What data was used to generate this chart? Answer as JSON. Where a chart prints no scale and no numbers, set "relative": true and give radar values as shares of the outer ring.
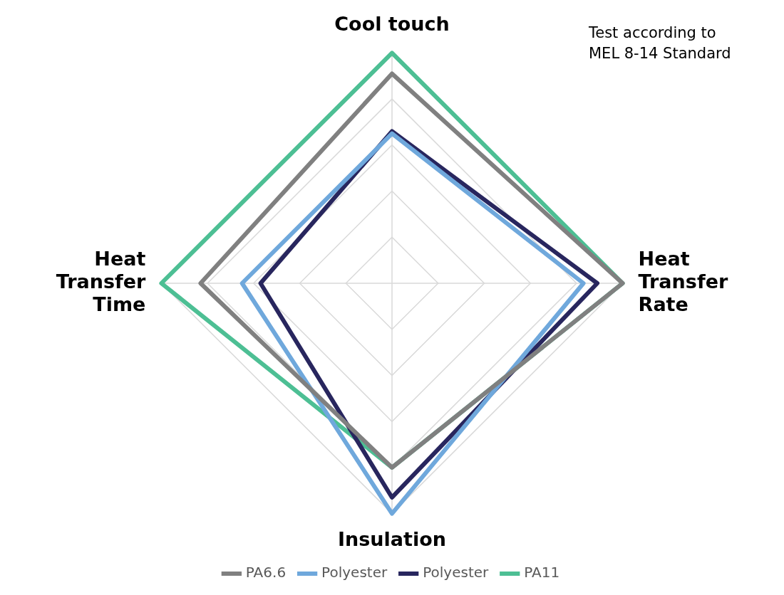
{
  "chart_data": {
    "type": "radar",
    "relative": true,
    "categories": [
      "Cool touch",
      "Heat Transfer Rate",
      "Insulation",
      "Heat Transfer Time"
    ],
    "series": [
      {
        "name": "PA6.6",
        "color": "#808080",
        "values": [
          0.91,
          1.0,
          0.8,
          0.83
        ]
      },
      {
        "name": "Polyester",
        "color": "#6fa8dc",
        "values": [
          0.65,
          0.83,
          1.0,
          0.65
        ]
      },
      {
        "name": "Polyester",
        "color": "#28265e",
        "values": [
          0.66,
          0.89,
          0.93,
          0.57
        ]
      },
      {
        "name": "PA11",
        "color": "#4dbf94",
        "values": [
          1.0,
          1.0,
          0.8,
          1.0
        ]
      }
    ],
    "grid": true,
    "legend": "bottom",
    "marker": "none",
    "line_style": "solid",
    "annotations": [
      "Test according to\nMEL 8-14 Standard"
    ]
  }
}
